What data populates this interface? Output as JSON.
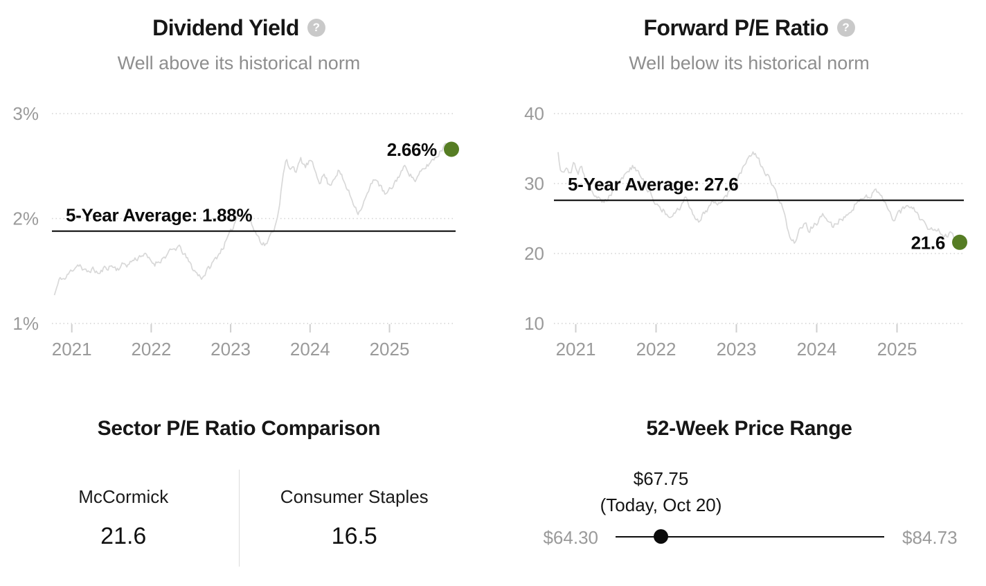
{
  "ui": {
    "help_glyph": "?"
  },
  "colors": {
    "accent_green": "#567d24",
    "series_line": "#d8d8d8",
    "average_line": "#0d0d0d",
    "muted_text": "#8e8e8e",
    "axis_text": "#9a9a9a"
  },
  "chart_data": [
    {
      "type": "line",
      "title": "Dividend Yield",
      "subtitle": "Well above its historical norm",
      "xlabel": "",
      "ylabel": "",
      "x_range": [
        2020.78,
        2025.78
      ],
      "x_ticks": [
        2021,
        2022,
        2023,
        2024,
        2025
      ],
      "y_ticks": [
        {
          "value": 3,
          "label": "3%"
        },
        {
          "value": 2,
          "label": "2%"
        },
        {
          "value": 1,
          "label": "1%"
        }
      ],
      "ylim": [
        1,
        3
      ],
      "grid": "dotted-horizontal",
      "legend": "none",
      "average": {
        "value": 1.88,
        "label": "5-Year Average: 1.88%"
      },
      "current": {
        "value": 2.66,
        "label": "2.66%"
      },
      "series": [
        {
          "name": "Dividend Yield (%)",
          "points": [
            [
              2020.78,
              1.27
            ],
            [
              2020.82,
              1.36
            ],
            [
              2020.86,
              1.44
            ],
            [
              2020.91,
              1.42
            ],
            [
              2020.96,
              1.47
            ],
            [
              2021.0,
              1.51
            ],
            [
              2021.05,
              1.55
            ],
            [
              2021.1,
              1.57
            ],
            [
              2021.14,
              1.5
            ],
            [
              2021.2,
              1.49
            ],
            [
              2021.25,
              1.52
            ],
            [
              2021.3,
              1.5
            ],
            [
              2021.35,
              1.47
            ],
            [
              2021.4,
              1.52
            ],
            [
              2021.46,
              1.54
            ],
            [
              2021.51,
              1.55
            ],
            [
              2021.56,
              1.52
            ],
            [
              2021.61,
              1.54
            ],
            [
              2021.66,
              1.57
            ],
            [
              2021.71,
              1.56
            ],
            [
              2021.76,
              1.6
            ],
            [
              2021.82,
              1.62
            ],
            [
              2021.88,
              1.66
            ],
            [
              2021.94,
              1.64
            ],
            [
              2021.98,
              1.6
            ],
            [
              2022.04,
              1.57
            ],
            [
              2022.1,
              1.6
            ],
            [
              2022.16,
              1.63
            ],
            [
              2022.22,
              1.67
            ],
            [
              2022.28,
              1.7
            ],
            [
              2022.34,
              1.73
            ],
            [
              2022.4,
              1.68
            ],
            [
              2022.46,
              1.6
            ],
            [
              2022.52,
              1.53
            ],
            [
              2022.58,
              1.47
            ],
            [
              2022.64,
              1.44
            ],
            [
              2022.7,
              1.5
            ],
            [
              2022.76,
              1.56
            ],
            [
              2022.82,
              1.63
            ],
            [
              2022.88,
              1.7
            ],
            [
              2022.94,
              1.78
            ],
            [
              2023.0,
              1.86
            ],
            [
              2023.06,
              1.98
            ],
            [
              2023.11,
              2.08
            ],
            [
              2023.16,
              2.02
            ],
            [
              2023.21,
              2.06
            ],
            [
              2023.26,
              1.95
            ],
            [
              2023.32,
              1.86
            ],
            [
              2023.38,
              1.79
            ],
            [
              2023.44,
              1.75
            ],
            [
              2023.5,
              1.83
            ],
            [
              2023.56,
              1.93
            ],
            [
              2023.61,
              2.12
            ],
            [
              2023.66,
              2.4
            ],
            [
              2023.7,
              2.56
            ],
            [
              2023.74,
              2.46
            ],
            [
              2023.78,
              2.52
            ],
            [
              2023.83,
              2.44
            ],
            [
              2023.88,
              2.56
            ],
            [
              2023.94,
              2.49
            ],
            [
              2024.0,
              2.55
            ],
            [
              2024.06,
              2.46
            ],
            [
              2024.12,
              2.36
            ],
            [
              2024.18,
              2.42
            ],
            [
              2024.24,
              2.31
            ],
            [
              2024.3,
              2.39
            ],
            [
              2024.36,
              2.46
            ],
            [
              2024.42,
              2.36
            ],
            [
              2024.48,
              2.26
            ],
            [
              2024.54,
              2.16
            ],
            [
              2024.61,
              2.06
            ],
            [
              2024.68,
              2.16
            ],
            [
              2024.75,
              2.28
            ],
            [
              2024.82,
              2.4
            ],
            [
              2024.88,
              2.31
            ],
            [
              2024.95,
              2.22
            ],
            [
              2025.02,
              2.28
            ],
            [
              2025.08,
              2.36
            ],
            [
              2025.15,
              2.45
            ],
            [
              2025.21,
              2.5
            ],
            [
              2025.27,
              2.41
            ],
            [
              2025.33,
              2.36
            ],
            [
              2025.39,
              2.43
            ],
            [
              2025.46,
              2.49
            ],
            [
              2025.53,
              2.55
            ],
            [
              2025.6,
              2.6
            ],
            [
              2025.66,
              2.66
            ],
            [
              2025.71,
              2.74
            ],
            [
              2025.75,
              2.7
            ],
            [
              2025.78,
              2.66
            ]
          ]
        }
      ]
    },
    {
      "type": "line",
      "title": "Forward P/E Ratio",
      "subtitle": "Well below its historical norm",
      "xlabel": "",
      "ylabel": "",
      "x_range": [
        2020.78,
        2025.78
      ],
      "x_ticks": [
        2021,
        2022,
        2023,
        2024,
        2025
      ],
      "y_ticks": [
        {
          "value": 40,
          "label": "40"
        },
        {
          "value": 30,
          "label": "30"
        },
        {
          "value": 20,
          "label": "20"
        },
        {
          "value": 10,
          "label": "10"
        }
      ],
      "ylim": [
        10,
        40
      ],
      "grid": "dotted-horizontal",
      "legend": "none",
      "average": {
        "value": 27.6,
        "label": "5-Year Average: 27.6"
      },
      "current": {
        "value": 21.6,
        "label": "21.6"
      },
      "series": [
        {
          "name": "Forward P/E Ratio",
          "points": [
            [
              2020.78,
              34.5
            ],
            [
              2020.81,
              32.2
            ],
            [
              2020.85,
              31.8
            ],
            [
              2020.89,
              32.6
            ],
            [
              2020.93,
              31.6
            ],
            [
              2020.97,
              32.9
            ],
            [
              2021.02,
              31.4
            ],
            [
              2021.07,
              32.2
            ],
            [
              2021.12,
              30.8
            ],
            [
              2021.18,
              29.6
            ],
            [
              2021.24,
              28.4
            ],
            [
              2021.3,
              27.6
            ],
            [
              2021.35,
              27.1
            ],
            [
              2021.41,
              28.2
            ],
            [
              2021.47,
              29.2
            ],
            [
              2021.53,
              30.2
            ],
            [
              2021.59,
              31.0
            ],
            [
              2021.65,
              31.8
            ],
            [
              2021.71,
              32.4
            ],
            [
              2021.77,
              31.6
            ],
            [
              2021.83,
              30.6
            ],
            [
              2021.89,
              29.2
            ],
            [
              2021.95,
              28.0
            ],
            [
              2022.01,
              27.2
            ],
            [
              2022.07,
              26.3
            ],
            [
              2022.13,
              25.6
            ],
            [
              2022.19,
              24.9
            ],
            [
              2022.25,
              25.8
            ],
            [
              2022.31,
              26.8
            ],
            [
              2022.36,
              27.9
            ],
            [
              2022.42,
              26.6
            ],
            [
              2022.48,
              25.3
            ],
            [
              2022.54,
              24.6
            ],
            [
              2022.6,
              25.8
            ],
            [
              2022.66,
              26.8
            ],
            [
              2022.72,
              27.6
            ],
            [
              2022.78,
              27.1
            ],
            [
              2022.84,
              27.9
            ],
            [
              2022.9,
              28.6
            ],
            [
              2022.96,
              29.6
            ],
            [
              2023.02,
              30.8
            ],
            [
              2023.08,
              32.0
            ],
            [
              2023.14,
              33.2
            ],
            [
              2023.2,
              34.3
            ],
            [
              2023.26,
              33.6
            ],
            [
              2023.32,
              32.4
            ],
            [
              2023.38,
              31.2
            ],
            [
              2023.44,
              29.8
            ],
            [
              2023.5,
              28.4
            ],
            [
              2023.56,
              26.8
            ],
            [
              2023.62,
              24.4
            ],
            [
              2023.68,
              22.2
            ],
            [
              2023.72,
              21.6
            ],
            [
              2023.78,
              23.0
            ],
            [
              2023.84,
              24.2
            ],
            [
              2023.9,
              23.4
            ],
            [
              2023.96,
              24.0
            ],
            [
              2024.02,
              24.6
            ],
            [
              2024.08,
              25.4
            ],
            [
              2024.14,
              24.6
            ],
            [
              2024.2,
              23.9
            ],
            [
              2024.26,
              24.4
            ],
            [
              2024.32,
              25.1
            ],
            [
              2024.38,
              25.8
            ],
            [
              2024.44,
              26.6
            ],
            [
              2024.51,
              27.3
            ],
            [
              2024.58,
              27.9
            ],
            [
              2024.65,
              28.3
            ],
            [
              2024.72,
              29.0
            ],
            [
              2024.78,
              28.4
            ],
            [
              2024.84,
              27.2
            ],
            [
              2024.9,
              26.0
            ],
            [
              2024.96,
              24.9
            ],
            [
              2025.02,
              25.6
            ],
            [
              2025.08,
              26.4
            ],
            [
              2025.14,
              27.2
            ],
            [
              2025.2,
              26.4
            ],
            [
              2025.26,
              25.4
            ],
            [
              2025.32,
              24.6
            ],
            [
              2025.38,
              23.8
            ],
            [
              2025.44,
              23.3
            ],
            [
              2025.5,
              23.7
            ],
            [
              2025.56,
              23.1
            ],
            [
              2025.62,
              22.6
            ],
            [
              2025.68,
              23.2
            ],
            [
              2025.72,
              22.4
            ],
            [
              2025.75,
              20.9
            ],
            [
              2025.78,
              21.6
            ]
          ]
        }
      ]
    },
    {
      "type": "table",
      "title": "Sector P/E Ratio Comparison",
      "columns": [
        "McCormick",
        "Consumer Staples"
      ],
      "values": [
        21.6,
        16.5
      ],
      "value_labels": [
        "21.6",
        "16.5"
      ]
    },
    {
      "type": "range",
      "title": "52-Week Price Range",
      "min": 64.3,
      "max": 84.73,
      "current": 67.75,
      "min_label": "$64.30",
      "max_label": "$84.73",
      "current_label": "$67.75",
      "current_note": "(Today, Oct 20)"
    }
  ]
}
